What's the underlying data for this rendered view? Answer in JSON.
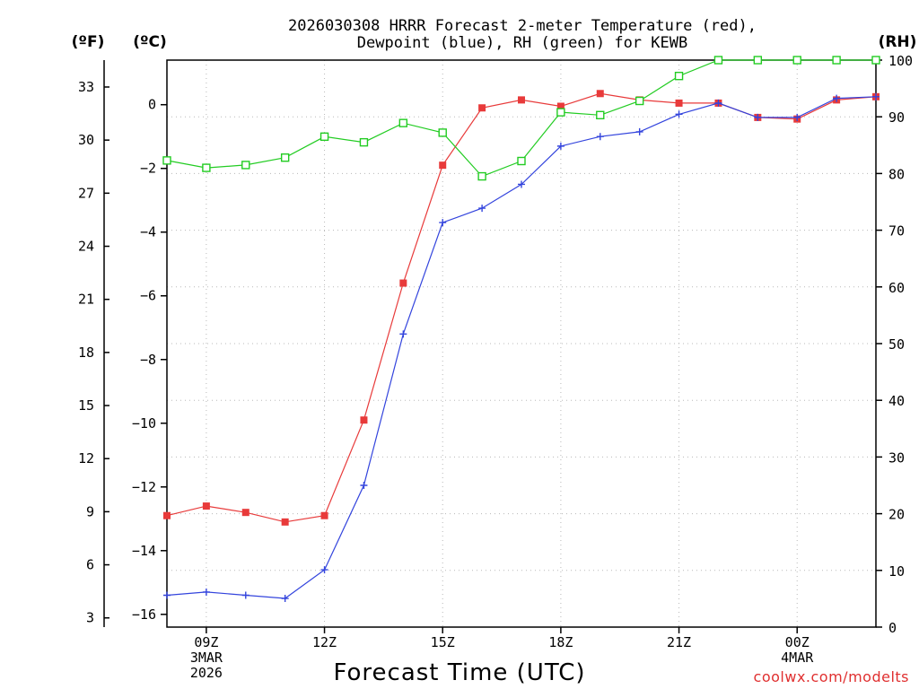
{
  "chart_data": {
    "type": "line",
    "title_line1": "2026030308 HRRR Forecast 2-meter Temperature (red),",
    "title_line2": "Dewpoint (blue), RH (green) for KEWB",
    "unit_f": "(ºF)",
    "unit_c": "(ºC)",
    "unit_rh": "(RH)",
    "xlabel": "Forecast Time (UTC)",
    "credit": "coolwx.com/modelts",
    "hours": [
      8,
      9,
      10,
      11,
      12,
      13,
      14,
      15,
      16,
      17,
      18,
      19,
      20,
      21,
      22,
      23,
      24,
      25,
      26
    ],
    "x_ticks": [
      {
        "hour": 9,
        "lines": [
          "09Z",
          "3MAR",
          "2026"
        ]
      },
      {
        "hour": 12,
        "lines": [
          "12Z"
        ]
      },
      {
        "hour": 15,
        "lines": [
          "15Z"
        ]
      },
      {
        "hour": 18,
        "lines": [
          "18Z"
        ]
      },
      {
        "hour": 21,
        "lines": [
          "21Z"
        ]
      },
      {
        "hour": 24,
        "lines": [
          "00Z",
          "4MAR"
        ]
      }
    ],
    "xlim": [
      8,
      26
    ],
    "ylim_c": [
      -16.4,
      1.4
    ],
    "y_ticks_c": [
      0,
      -2,
      -4,
      -6,
      -8,
      -10,
      -12,
      -14,
      -16
    ],
    "y_ticks_c_labels": [
      "0",
      "−2",
      "−4",
      "−6",
      "−8",
      "−10",
      "−12",
      "−14",
      "−16"
    ],
    "y_ticks_f": [
      33,
      30,
      27,
      24,
      21,
      18,
      15,
      12,
      9,
      6,
      3
    ],
    "y_ticks_rh": [
      100,
      90,
      80,
      70,
      60,
      50,
      40,
      30,
      20,
      10,
      0
    ],
    "series": [
      {
        "name": "Temperature",
        "color": "#e83a3a",
        "marker": "filled-square",
        "values": [
          -12.9,
          -12.6,
          -12.8,
          -13.1,
          -12.9,
          -9.9,
          -5.6,
          -1.9,
          -0.1,
          0.15,
          -0.05,
          0.35,
          0.15,
          0.05,
          0.05,
          -0.4,
          -0.45,
          0.15,
          0.25
        ]
      },
      {
        "name": "Dewpoint",
        "color": "#3344dd",
        "marker": "plus",
        "values": [
          -15.4,
          -15.3,
          -15.4,
          -15.5,
          -14.6,
          -11.95,
          -7.2,
          -3.7,
          -3.25,
          -2.5,
          -1.3,
          -1.0,
          -0.85,
          -0.3,
          0.05,
          -0.4,
          -0.4,
          0.2,
          0.25
        ]
      },
      {
        "name": "RH",
        "color": "#22cc22",
        "marker": "open-square",
        "values": [
          82.3,
          81.0,
          81.5,
          82.8,
          86.5,
          85.5,
          88.9,
          87.2,
          79.5,
          82.2,
          90.8,
          90.3,
          92.8,
          97.2,
          100,
          100,
          100,
          100,
          100
        ]
      }
    ]
  }
}
